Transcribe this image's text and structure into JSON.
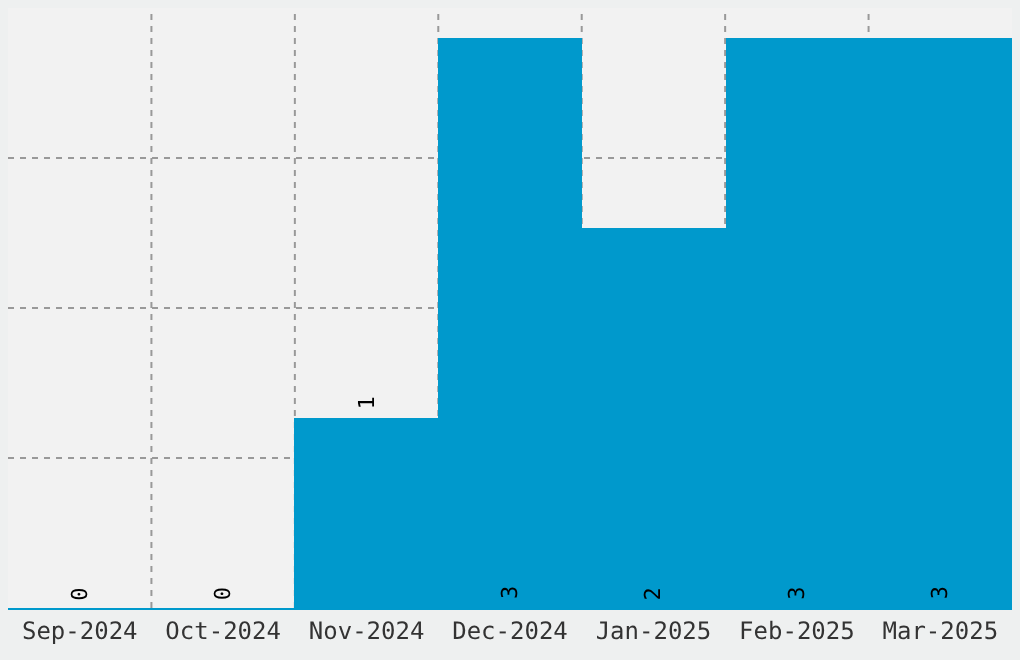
{
  "chart_data": {
    "type": "bar",
    "categories": [
      "Sep-2024",
      "Oct-2024",
      "Nov-2024",
      "Dec-2024",
      "Jan-2025",
      "Feb-2025",
      "Mar-2025"
    ],
    "values": [
      0,
      0,
      1,
      3,
      2,
      3,
      3
    ],
    "color": "#0099cc",
    "data_labels": true,
    "tick_labels": "x",
    "grid": true
  }
}
